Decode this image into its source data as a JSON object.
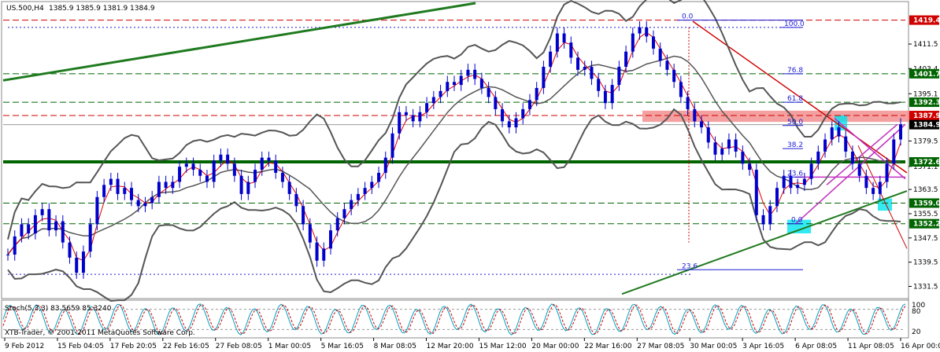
{
  "header": {
    "symbol": "US.500,H4",
    "ohlc": "1385.9 1385.9 1381.9 1384.9"
  },
  "oscillator": {
    "label": "Stoch(5,3,3) 83.5659 85.3240",
    "scale_top": "100",
    "scale_80": "80",
    "scale_20": "20",
    "copyright": "XTB-Trader, © 2001-2011 MetaQuotes Software Corp."
  },
  "colors": {
    "price_bars": "#0000cc",
    "bollinger": "#555555",
    "ma_red": "#e00000",
    "trend_green": "#1f7a1f",
    "support_green": "#006400",
    "resistance_red": "#d00000",
    "fib_blue": "#1a1ad6",
    "zone_pink": "#f08080",
    "highlight_cyan": "#00e5ee",
    "magenta": "#c030c0",
    "stoch_main": "#00a0c0",
    "stoch_signal": "#d00000"
  },
  "chart_data": {
    "type": "candlestick",
    "title": "US.500,H4",
    "xlabel": "",
    "ylabel": "",
    "ylim": [
      1328,
      1425
    ],
    "grid": false,
    "x_tick_labels": [
      "9 Feb 2012",
      "15 Feb 04:05",
      "17 Feb 20:05",
      "22 Feb 16:05",
      "27 Feb 08:05",
      "1 Mar 00:05",
      "5 Mar 16:05",
      "8 Mar 08:05",
      "12 Mar 20:00",
      "15 Mar 12:00",
      "20 Mar 00:00",
      "22 Mar 16:00",
      "27 Mar 08:05",
      "30 Mar 00:05",
      "3 Apr 16:05",
      "6 Apr 08:05",
      "11 Apr 08:05",
      "16 Apr 00:05"
    ],
    "y_tick_labels": [
      "1411.5",
      "1403.4",
      "1395.1",
      "1379.5",
      "1371.1",
      "1363.5",
      "1355.5",
      "1347.5",
      "1339.5",
      "1331.5"
    ],
    "y_tick_values": [
      1411.5,
      1403.4,
      1395.1,
      1379.5,
      1371.1,
      1363.5,
      1355.5,
      1347.5,
      1339.5,
      1331.5
    ],
    "level_badges": [
      {
        "label": "1419.4",
        "value": 1419.4,
        "color": "#d00000"
      },
      {
        "label": "1401.7",
        "value": 1401.7,
        "color": "#006400"
      },
      {
        "label": "1392.3",
        "value": 1392.3,
        "color": "#006400"
      },
      {
        "label": "1387.9",
        "value": 1387.9,
        "color": "#d00000"
      },
      {
        "label": "1384.9",
        "value": 1384.9,
        "color": "#000000"
      },
      {
        "label": "1372.6",
        "value": 1372.6,
        "color": "#006400"
      },
      {
        "label": "1359.0",
        "value": 1359.0,
        "color": "#006400"
      },
      {
        "label": "1352.2",
        "value": 1352.2,
        "color": "#006400"
      }
    ],
    "fib_levels": [
      {
        "label": "0.0",
        "value": 1419.4
      },
      {
        "label": "100.0",
        "value": 1417.0
      },
      {
        "label": "76.8",
        "value": 1401.7
      },
      {
        "label": "61.8",
        "value": 1392.3
      },
      {
        "label": "50.0",
        "value": 1384.6
      },
      {
        "label": "38.2",
        "value": 1377.0
      },
      {
        "label": "23.6",
        "value": 1367.6
      },
      {
        "label": "0.0",
        "value": 1352.2
      },
      {
        "label": "23.6",
        "value": 1337.0
      }
    ],
    "current_price": 1384.9,
    "close": [
      1342,
      1348,
      1352,
      1349,
      1355,
      1357,
      1350,
      1353,
      1346,
      1341,
      1336,
      1343,
      1352,
      1361,
      1365,
      1367,
      1362,
      1364,
      1360,
      1358,
      1359,
      1361,
      1366,
      1364,
      1366,
      1371,
      1372,
      1370,
      1368,
      1366,
      1373,
      1375,
      1372,
      1368,
      1362,
      1366,
      1370,
      1374,
      1373,
      1369,
      1366,
      1362,
      1358,
      1352,
      1346,
      1340,
      1344,
      1350,
      1354,
      1357,
      1360,
      1362,
      1364,
      1366,
      1369,
      1374,
      1382,
      1389,
      1388,
      1386,
      1389,
      1392,
      1394,
      1396,
      1399,
      1398,
      1401,
      1403,
      1400,
      1397,
      1394,
      1390,
      1386,
      1384,
      1387,
      1390,
      1393,
      1397,
      1404,
      1409,
      1415,
      1412,
      1407,
      1403,
      1404,
      1400,
      1396,
      1392,
      1398,
      1404,
      1409,
      1415,
      1417,
      1414,
      1410,
      1406,
      1403,
      1399,
      1394,
      1390,
      1386,
      1384,
      1379,
      1375,
      1377,
      1380,
      1376,
      1372,
      1370,
      1355,
      1352,
      1358,
      1364,
      1368,
      1364,
      1365,
      1367,
      1372,
      1376,
      1380,
      1384,
      1381,
      1376,
      1372,
      1368,
      1364,
      1362,
      1366,
      1372,
      1380,
      1385
    ]
  }
}
